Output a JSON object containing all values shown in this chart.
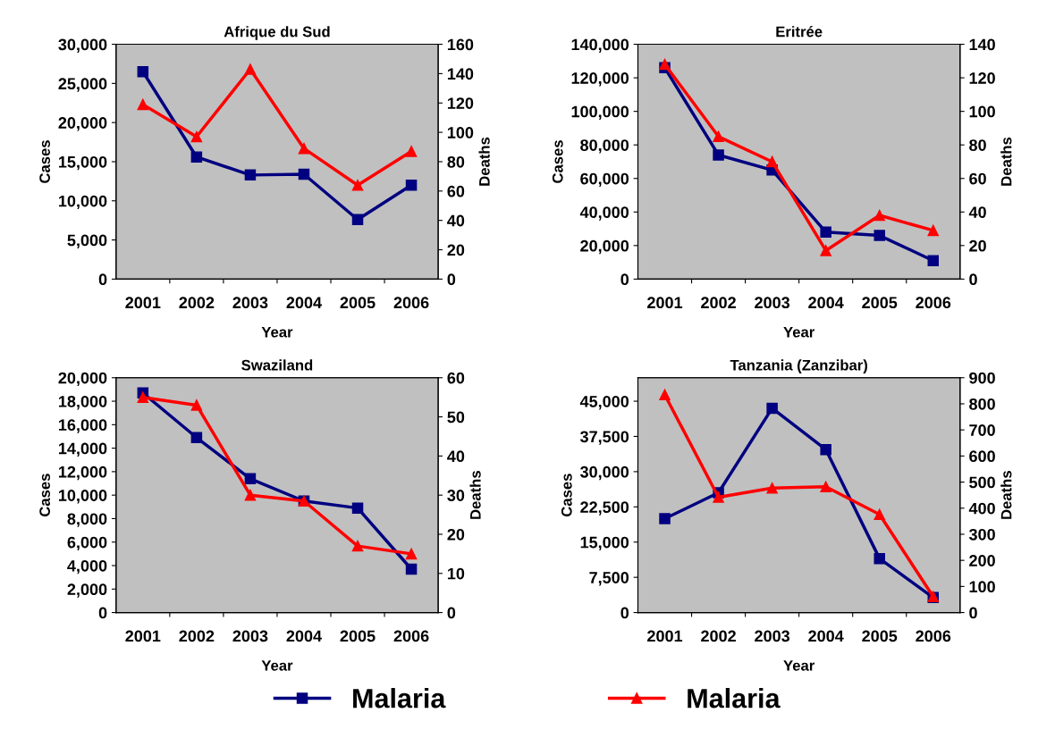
{
  "chart_data": [
    {
      "type": "line",
      "title": "Afrique du Sud",
      "xlabel": "Year",
      "ylabel": "Cases",
      "y2label": "Deaths",
      "categories": [
        "2001",
        "2002",
        "2003",
        "2004",
        "2005",
        "2006"
      ],
      "series": [
        {
          "color": "#000080",
          "marker": "square",
          "values": [
            26500,
            15600,
            13300,
            13400,
            7600,
            12000
          ]
        },
        {
          "color": "#ff0000",
          "marker": "triangle",
          "axis": "y2",
          "values": [
            119,
            97,
            143,
            89,
            64,
            87
          ]
        }
      ],
      "ylim": [
        0,
        30000
      ],
      "yticks": [
        {
          "value": 0,
          "label": "0"
        },
        {
          "value": 5000,
          "label": "5,000"
        },
        {
          "value": 10000,
          "label": "10,000"
        },
        {
          "value": 15000,
          "label": "15,000"
        },
        {
          "value": 20000,
          "label": "20,000"
        },
        {
          "value": 25000,
          "label": "25,000"
        },
        {
          "value": 30000,
          "label": "30,000"
        }
      ],
      "y2lim": [
        0,
        160
      ],
      "y2ticks": [
        0,
        20,
        40,
        60,
        80,
        100,
        120,
        140,
        160
      ],
      "grid": false
    },
    {
      "type": "line",
      "title": "Eritrée",
      "xlabel": "Year",
      "ylabel": "Cases",
      "y2label": "Deaths",
      "categories": [
        "2001",
        "2002",
        "2003",
        "2004",
        "2005",
        "2006"
      ],
      "series": [
        {
          "color": "#000080",
          "marker": "square",
          "values": [
            126000,
            74000,
            65000,
            28000,
            26000,
            11000
          ]
        },
        {
          "color": "#ff0000",
          "marker": "triangle",
          "axis": "y2",
          "values": [
            128,
            85,
            70,
            17,
            38,
            29
          ]
        }
      ],
      "ylim": [
        0,
        140000
      ],
      "yticks": [
        {
          "value": 0,
          "label": "0"
        },
        {
          "value": 20000,
          "label": "20,000"
        },
        {
          "value": 40000,
          "label": "40,000"
        },
        {
          "value": 60000,
          "label": "60,000"
        },
        {
          "value": 80000,
          "label": "80,000"
        },
        {
          "value": 100000,
          "label": "100,000"
        },
        {
          "value": 120000,
          "label": "120,000"
        },
        {
          "value": 140000,
          "label": "140,000"
        }
      ],
      "y2lim": [
        0,
        140
      ],
      "y2ticks": [
        0,
        20,
        40,
        60,
        80,
        100,
        120,
        140
      ],
      "grid": false
    },
    {
      "type": "line",
      "title": "Swaziland",
      "xlabel": "Year",
      "ylabel": "Cases",
      "y2label": "Deaths",
      "categories": [
        "2001",
        "2002",
        "2003",
        "2004",
        "2005",
        "2006"
      ],
      "series": [
        {
          "color": "#000080",
          "marker": "square",
          "values": [
            18700,
            14900,
            11400,
            9500,
            8900,
            3700
          ]
        },
        {
          "color": "#ff0000",
          "marker": "triangle",
          "axis": "y2",
          "values": [
            55,
            53,
            30,
            28.5,
            17,
            15
          ]
        }
      ],
      "ylim": [
        0,
        20000
      ],
      "yticks": [
        {
          "value": 0,
          "label": "0"
        },
        {
          "value": 2000,
          "label": "2,000"
        },
        {
          "value": 4000,
          "label": "4,000"
        },
        {
          "value": 6000,
          "label": "6,000"
        },
        {
          "value": 8000,
          "label": "8,000"
        },
        {
          "value": 10000,
          "label": "10,000"
        },
        {
          "value": 12000,
          "label": "12,000"
        },
        {
          "value": 14000,
          "label": "14,000"
        },
        {
          "value": 16000,
          "label": "16,000"
        },
        {
          "value": 18000,
          "label": "18,000"
        },
        {
          "value": 20000,
          "label": "20,000"
        }
      ],
      "y2lim": [
        0,
        60
      ],
      "y2ticks": [
        0,
        10,
        20,
        30,
        40,
        50,
        60
      ],
      "grid": false
    },
    {
      "type": "line",
      "title": "Tanzania (Zanzibar)",
      "xlabel": "Year",
      "ylabel": "Cases",
      "y2label": "Deaths",
      "categories": [
        "2001",
        "2002",
        "2003",
        "2004",
        "2005",
        "2006"
      ],
      "series": [
        {
          "name": "Malaria",
          "color": "#000080",
          "marker": "square",
          "values": [
            20000,
            25500,
            43500,
            34700,
            11500,
            3200
          ]
        },
        {
          "name": "Malaria",
          "color": "#ff0000",
          "marker": "triangle",
          "axis": "y2",
          "values": [
            835,
            442,
            477,
            482,
            376,
            61
          ]
        }
      ],
      "ylim": [
        0,
        50000
      ],
      "yticks": [
        {
          "value": 0,
          "label": "0"
        },
        {
          "value": 7500,
          "label": "7,500"
        },
        {
          "value": 15000,
          "label": "15,000"
        },
        {
          "value": 22500,
          "label": "22,500"
        },
        {
          "value": 30000,
          "label": "30,000"
        },
        {
          "value": 37500,
          "label": "37,500"
        },
        {
          "value": 45000,
          "label": "45,000"
        }
      ],
      "y2lim": [
        0,
        900
      ],
      "y2ticks": [
        0,
        100,
        200,
        300,
        400,
        500,
        600,
        700,
        800,
        900
      ],
      "grid": false,
      "legend": "bottom"
    }
  ]
}
